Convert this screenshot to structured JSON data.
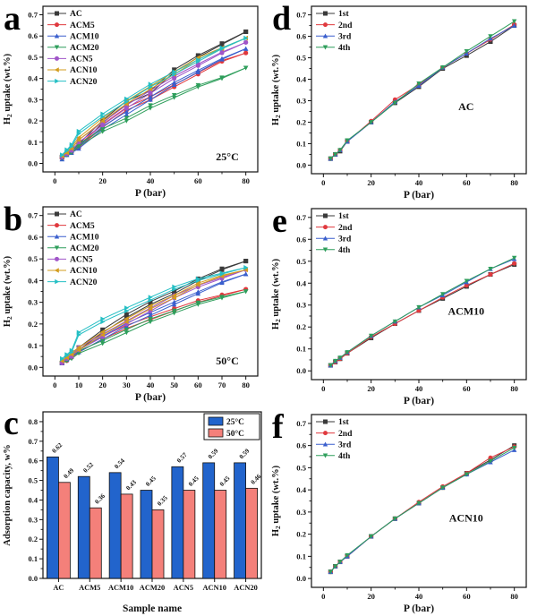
{
  "figure": {
    "background": "#ffffff",
    "panel_letters": [
      "a",
      "b",
      "c",
      "d",
      "e",
      "f"
    ]
  },
  "chart_data": [
    {
      "panel": "a",
      "type": "line",
      "annotation": "25°C",
      "annotation_pos": "bottom-right",
      "xlabel": "P (bar)",
      "ylabel": "H₂ uptake (wt.%)",
      "x": [
        3,
        5,
        7,
        10,
        20,
        30,
        40,
        50,
        60,
        70,
        80
      ],
      "xticks": [
        0,
        20,
        40,
        60,
        80
      ],
      "xminor": [
        10,
        30,
        50,
        70
      ],
      "xlim": [
        -5,
        85
      ],
      "yticks": [
        0.0,
        0.1,
        0.2,
        0.3,
        0.4,
        0.5,
        0.6,
        0.7
      ],
      "ylim": [
        -0.04,
        0.74
      ],
      "hysteresis": true,
      "legend_position": "top-left",
      "series": [
        {
          "name": "AC",
          "color": "#3a3a3a",
          "marker": "square",
          "values": [
            0.03,
            0.045,
            0.06,
            0.08,
            0.19,
            0.28,
            0.33,
            0.43,
            0.5,
            0.56,
            0.62
          ]
        },
        {
          "name": "ACM5",
          "color": "#e0393e",
          "marker": "circle",
          "values": [
            0.025,
            0.04,
            0.05,
            0.075,
            0.17,
            0.25,
            0.3,
            0.36,
            0.42,
            0.48,
            0.52
          ]
        },
        {
          "name": "ACM10",
          "color": "#3a5fcd",
          "marker": "triangle-up",
          "values": [
            0.02,
            0.04,
            0.05,
            0.07,
            0.16,
            0.23,
            0.3,
            0.37,
            0.43,
            0.49,
            0.54
          ]
        },
        {
          "name": "ACM20",
          "color": "#2e9e5b",
          "marker": "triangle-down",
          "values": [
            0.025,
            0.04,
            0.05,
            0.08,
            0.15,
            0.2,
            0.26,
            0.31,
            0.36,
            0.4,
            0.45
          ]
        },
        {
          "name": "ACN5",
          "color": "#a055c8",
          "marker": "circle",
          "values": [
            0.03,
            0.045,
            0.06,
            0.1,
            0.18,
            0.26,
            0.33,
            0.4,
            0.46,
            0.52,
            0.57
          ]
        },
        {
          "name": "ACN10",
          "color": "#d39c1e",
          "marker": "triangle-left",
          "values": [
            0.035,
            0.05,
            0.07,
            0.11,
            0.2,
            0.28,
            0.35,
            0.42,
            0.49,
            0.54,
            0.59
          ]
        },
        {
          "name": "ACN20",
          "color": "#25bfc4",
          "marker": "triangle-right",
          "values": [
            0.04,
            0.06,
            0.08,
            0.14,
            0.22,
            0.29,
            0.36,
            0.42,
            0.48,
            0.54,
            0.59
          ]
        }
      ]
    },
    {
      "panel": "b",
      "type": "line",
      "annotation": "50°C",
      "annotation_pos": "bottom-right",
      "xlabel": "P (bar)",
      "ylabel": "H₂ uptake (wt.%)",
      "x": [
        3,
        5,
        7,
        10,
        20,
        30,
        40,
        50,
        60,
        70,
        80
      ],
      "xticks": [
        0,
        10,
        20,
        30,
        40,
        50,
        60,
        70,
        80
      ],
      "xminor": [],
      "xlim": [
        -5,
        85
      ],
      "yticks": [
        0.0,
        0.1,
        0.2,
        0.3,
        0.4,
        0.5,
        0.6,
        0.7
      ],
      "ylim": [
        -0.04,
        0.74
      ],
      "hysteresis": true,
      "legend_position": "top-left",
      "series": [
        {
          "name": "AC",
          "color": "#3a3a3a",
          "marker": "square",
          "values": [
            0.02,
            0.04,
            0.05,
            0.08,
            0.16,
            0.23,
            0.29,
            0.34,
            0.4,
            0.45,
            0.49
          ]
        },
        {
          "name": "ACM5",
          "color": "#e0393e",
          "marker": "circle",
          "values": [
            0.02,
            0.03,
            0.045,
            0.07,
            0.13,
            0.18,
            0.22,
            0.26,
            0.3,
            0.33,
            0.36
          ]
        },
        {
          "name": "ACM10",
          "color": "#3a5fcd",
          "marker": "triangle-up",
          "values": [
            0.02,
            0.035,
            0.05,
            0.07,
            0.13,
            0.19,
            0.24,
            0.29,
            0.34,
            0.39,
            0.43
          ]
        },
        {
          "name": "ACM20",
          "color": "#2e9e5b",
          "marker": "triangle-down",
          "values": [
            0.02,
            0.03,
            0.04,
            0.065,
            0.11,
            0.16,
            0.21,
            0.25,
            0.29,
            0.32,
            0.35
          ]
        },
        {
          "name": "ACN5",
          "color": "#a055c8",
          "marker": "circle",
          "values": [
            0.02,
            0.04,
            0.05,
            0.08,
            0.14,
            0.2,
            0.26,
            0.32,
            0.37,
            0.41,
            0.45
          ]
        },
        {
          "name": "ACN10",
          "color": "#d39c1e",
          "marker": "triangle-left",
          "values": [
            0.03,
            0.045,
            0.06,
            0.08,
            0.15,
            0.21,
            0.27,
            0.32,
            0.38,
            0.42,
            0.45
          ]
        },
        {
          "name": "ACN20",
          "color": "#25bfc4",
          "marker": "triangle-right",
          "values": [
            0.04,
            0.055,
            0.07,
            0.15,
            0.21,
            0.26,
            0.31,
            0.36,
            0.4,
            0.43,
            0.46
          ]
        }
      ]
    },
    {
      "panel": "c",
      "type": "bar",
      "xlabel": "Sample name",
      "ylabel": "Adsorption capacity, w%",
      "categories": [
        "AC",
        "ACM5",
        "ACM10",
        "ACM20",
        "ACN5",
        "ACN10",
        "ACN20"
      ],
      "yticks": [
        0.0,
        0.1,
        0.2,
        0.3,
        0.4,
        0.5,
        0.6,
        0.7,
        0.8
      ],
      "ylim": [
        0,
        0.85
      ],
      "legend_position": "top-right",
      "series": [
        {
          "name": "25°C",
          "color": "#2264cc",
          "values": [
            0.62,
            0.52,
            0.54,
            0.45,
            0.57,
            0.59,
            0.59
          ],
          "labels": [
            "0.62",
            "0.52",
            "0.54",
            "0.45",
            "0.57",
            "0.59",
            "0.59"
          ]
        },
        {
          "name": "50°C",
          "color": "#f4807a",
          "values": [
            0.49,
            0.36,
            0.43,
            0.35,
            0.45,
            0.45,
            0.46
          ],
          "labels": [
            "0.49",
            "0.36",
            "0.43",
            "0.35",
            "0.45",
            "0.45",
            "0.46"
          ]
        }
      ]
    },
    {
      "panel": "d",
      "type": "line",
      "annotation": "AC",
      "annotation_pos": "mid-right",
      "xlabel": "P (bar)",
      "ylabel": "H₂ uptake (wt.%)",
      "x": [
        3,
        5,
        7,
        10,
        20,
        30,
        40,
        50,
        60,
        70,
        80
      ],
      "xticks": [
        0,
        20,
        40,
        60,
        80
      ],
      "xminor": [
        10,
        30,
        50,
        70
      ],
      "xlim": [
        -5,
        85
      ],
      "yticks": [
        0.0,
        0.1,
        0.2,
        0.3,
        0.4,
        0.5,
        0.6,
        0.7
      ],
      "ylim": [
        -0.04,
        0.74
      ],
      "hysteresis": false,
      "legend_position": "top-left",
      "series": [
        {
          "name": "1st",
          "color": "#3a3a3a",
          "marker": "square",
          "values": [
            0.03,
            0.05,
            0.065,
            0.11,
            0.2,
            0.29,
            0.365,
            0.45,
            0.51,
            0.575,
            0.65
          ]
        },
        {
          "name": "2nd",
          "color": "#e0393e",
          "marker": "circle",
          "values": [
            0.03,
            0.05,
            0.07,
            0.11,
            0.205,
            0.305,
            0.375,
            0.455,
            0.52,
            0.585,
            0.655
          ]
        },
        {
          "name": "3rd",
          "color": "#3a5fcd",
          "marker": "triangle-up",
          "values": [
            0.03,
            0.05,
            0.07,
            0.11,
            0.2,
            0.295,
            0.37,
            0.455,
            0.52,
            0.59,
            0.65
          ]
        },
        {
          "name": "4th",
          "color": "#2e9e5b",
          "marker": "triangle-down",
          "values": [
            0.03,
            0.05,
            0.07,
            0.115,
            0.2,
            0.29,
            0.38,
            0.455,
            0.53,
            0.6,
            0.67
          ]
        }
      ]
    },
    {
      "panel": "e",
      "type": "line",
      "annotation": "ACM10",
      "annotation_pos": "mid-right",
      "xlabel": "P (bar)",
      "ylabel": "H₂ uptake (wt.%)",
      "x": [
        3,
        5,
        7,
        10,
        20,
        30,
        40,
        50,
        60,
        70,
        80
      ],
      "xticks": [
        0,
        20,
        40,
        60,
        80
      ],
      "xminor": [
        10,
        30,
        50,
        70
      ],
      "xlim": [
        -5,
        85
      ],
      "yticks": [
        0.0,
        0.1,
        0.2,
        0.3,
        0.4,
        0.5,
        0.6,
        0.7
      ],
      "ylim": [
        -0.04,
        0.74
      ],
      "hysteresis": false,
      "legend_position": "top-left",
      "series": [
        {
          "name": "1st",
          "color": "#3a3a3a",
          "marker": "square",
          "values": [
            0.025,
            0.04,
            0.055,
            0.08,
            0.15,
            0.215,
            0.275,
            0.33,
            0.385,
            0.44,
            0.485
          ]
        },
        {
          "name": "2nd",
          "color": "#e0393e",
          "marker": "circle",
          "values": [
            0.025,
            0.04,
            0.055,
            0.08,
            0.155,
            0.215,
            0.275,
            0.335,
            0.39,
            0.44,
            0.49
          ]
        },
        {
          "name": "3rd",
          "color": "#3a5fcd",
          "marker": "triangle-up",
          "values": [
            0.025,
            0.045,
            0.06,
            0.085,
            0.16,
            0.225,
            0.29,
            0.345,
            0.405,
            0.465,
            0.51
          ]
        },
        {
          "name": "4th",
          "color": "#2e9e5b",
          "marker": "triangle-down",
          "values": [
            0.025,
            0.045,
            0.06,
            0.085,
            0.16,
            0.225,
            0.29,
            0.35,
            0.41,
            0.465,
            0.515
          ]
        }
      ]
    },
    {
      "panel": "f",
      "type": "line",
      "annotation": "ACN10",
      "annotation_pos": "mid-right",
      "xlabel": "P (bar)",
      "ylabel": "H₂ uptake (wt.%)",
      "x": [
        3,
        5,
        7,
        10,
        20,
        30,
        40,
        50,
        60,
        70,
        80
      ],
      "xticks": [
        0,
        20,
        40,
        60,
        80
      ],
      "xminor": [
        10,
        30,
        50,
        70
      ],
      "xlim": [
        -5,
        85
      ],
      "yticks": [
        0.0,
        0.1,
        0.2,
        0.3,
        0.4,
        0.5,
        0.6,
        0.7
      ],
      "ylim": [
        -0.04,
        0.74
      ],
      "hysteresis": false,
      "legend_position": "top-left",
      "series": [
        {
          "name": "1st",
          "color": "#3a3a3a",
          "marker": "square",
          "values": [
            0.03,
            0.055,
            0.075,
            0.1,
            0.19,
            0.27,
            0.34,
            0.41,
            0.475,
            0.535,
            0.6
          ]
        },
        {
          "name": "2nd",
          "color": "#e0393e",
          "marker": "circle",
          "values": [
            0.03,
            0.055,
            0.075,
            0.1,
            0.19,
            0.27,
            0.345,
            0.415,
            0.475,
            0.545,
            0.595
          ]
        },
        {
          "name": "3rd",
          "color": "#3a5fcd",
          "marker": "triangle-up",
          "values": [
            0.03,
            0.055,
            0.075,
            0.1,
            0.19,
            0.27,
            0.34,
            0.41,
            0.47,
            0.525,
            0.58
          ]
        },
        {
          "name": "4th",
          "color": "#2e9e5b",
          "marker": "triangle-down",
          "values": [
            0.03,
            0.055,
            0.075,
            0.105,
            0.19,
            0.27,
            0.34,
            0.41,
            0.47,
            0.53,
            0.59
          ]
        }
      ]
    }
  ]
}
